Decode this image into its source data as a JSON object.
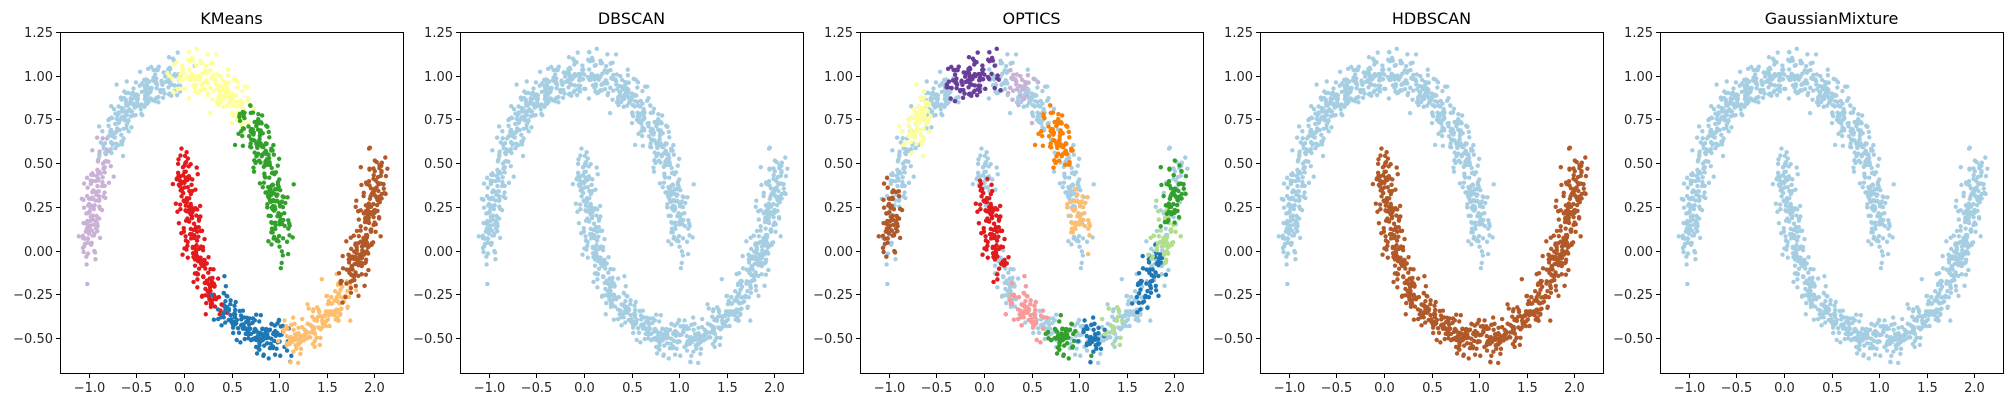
{
  "chart_data": [
    {
      "type": "scatter",
      "title": "KMeans",
      "xlabel": "",
      "ylabel": "",
      "xlim": [
        -1.3,
        2.3
      ],
      "ylim": [
        -0.7,
        1.25
      ],
      "xticks": [
        "−1.0",
        "−0.5",
        "0.0",
        "0.5",
        "1.0",
        "1.5",
        "2.0"
      ],
      "yticks": [
        "−0.50",
        "−0.25",
        "0.00",
        "0.25",
        "0.50",
        "0.75",
        "1.00",
        "1.25"
      ],
      "grid": false,
      "clusters": [
        {
          "color": "#cab2d6",
          "shape": "upper-moon",
          "t_range": [
            0.8,
            1.0
          ]
        },
        {
          "color": "#a6cee3",
          "shape": "upper-moon",
          "t_range": [
            0.52,
            0.8
          ]
        },
        {
          "color": "#ffff99",
          "shape": "upper-moon",
          "t_range": [
            0.28,
            0.52
          ]
        },
        {
          "color": "#33a02c",
          "shape": "upper-moon",
          "t_range": [
            0.0,
            0.28
          ]
        },
        {
          "color": "#e31a1c",
          "shape": "lower-moon",
          "t_range": [
            0.0,
            0.3
          ]
        },
        {
          "color": "#1f78b4",
          "shape": "lower-moon",
          "t_range": [
            0.3,
            0.52
          ]
        },
        {
          "color": "#fdbf6f",
          "shape": "lower-moon",
          "t_range": [
            0.52,
            0.75
          ]
        },
        {
          "color": "#b15928",
          "shape": "lower-moon",
          "t_range": [
            0.75,
            1.0
          ]
        }
      ]
    },
    {
      "type": "scatter",
      "title": "DBSCAN",
      "xlabel": "",
      "ylabel": "",
      "xlim": [
        -1.3,
        2.3
      ],
      "ylim": [
        -0.7,
        1.25
      ],
      "xticks": [
        "−1.0",
        "−0.5",
        "0.0",
        "0.5",
        "1.0",
        "1.5",
        "2.0"
      ],
      "yticks": [
        "−0.50",
        "−0.25",
        "0.00",
        "0.25",
        "0.50",
        "0.75",
        "1.00",
        "1.25"
      ],
      "grid": false,
      "clusters": [
        {
          "color": "#a6cee3",
          "shape": "upper-moon",
          "t_range": [
            0.0,
            1.0
          ]
        },
        {
          "color": "#a6cee3",
          "shape": "lower-moon",
          "t_range": [
            0.0,
            1.0
          ]
        }
      ]
    },
    {
      "type": "scatter",
      "title": "OPTICS",
      "xlabel": "",
      "ylabel": "",
      "xlim": [
        -1.3,
        2.3
      ],
      "ylim": [
        -0.7,
        1.25
      ],
      "xticks": [
        "−1.0",
        "−0.5",
        "0.0",
        "0.5",
        "1.0",
        "1.5",
        "2.0"
      ],
      "yticks": [
        "−0.50",
        "−0.25",
        "0.00",
        "0.25",
        "0.50",
        "0.75",
        "1.00",
        "1.25"
      ],
      "grid": false,
      "clusters": [
        {
          "color": "#a6cee3",
          "shape": "upper-moon",
          "t_range": [
            0.0,
            1.0
          ]
        },
        {
          "color": "#a6cee3",
          "shape": "lower-moon",
          "t_range": [
            0.0,
            1.0
          ]
        },
        {
          "color": "#b15928",
          "shape": "upper-moon",
          "t_range": [
            0.9,
            0.99
          ]
        },
        {
          "color": "#ffff99",
          "shape": "upper-moon",
          "t_range": [
            0.7,
            0.78
          ]
        },
        {
          "color": "#6a3d9a",
          "shape": "upper-moon",
          "t_range": [
            0.47,
            0.6
          ]
        },
        {
          "color": "#cab2d6",
          "shape": "upper-moon",
          "t_range": [
            0.36,
            0.42
          ]
        },
        {
          "color": "#ff7f00",
          "shape": "upper-moon",
          "t_range": [
            0.18,
            0.26
          ]
        },
        {
          "color": "#fdbf6f",
          "shape": "upper-moon",
          "t_range": [
            0.03,
            0.09
          ]
        },
        {
          "color": "#e31a1c",
          "shape": "lower-moon",
          "t_range": [
            0.05,
            0.2
          ]
        },
        {
          "color": "#fb9a99",
          "shape": "lower-moon",
          "t_range": [
            0.27,
            0.36
          ]
        },
        {
          "color": "#33a02c",
          "shape": "lower-moon",
          "t_range": [
            0.42,
            0.48
          ]
        },
        {
          "color": "#1f78b4",
          "shape": "lower-moon",
          "t_range": [
            0.52,
            0.56
          ]
        },
        {
          "color": "#b2df8a",
          "shape": "lower-moon",
          "t_range": [
            0.6,
            0.63
          ]
        },
        {
          "color": "#1f78b4",
          "shape": "lower-moon",
          "t_range": [
            0.72,
            0.8
          ]
        },
        {
          "color": "#b2df8a",
          "shape": "lower-moon",
          "t_range": [
            0.83,
            0.89
          ]
        },
        {
          "color": "#33a02c",
          "shape": "lower-moon",
          "t_range": [
            0.9,
            0.97
          ]
        }
      ]
    },
    {
      "type": "scatter",
      "title": "HDBSCAN",
      "xlabel": "",
      "ylabel": "",
      "xlim": [
        -1.3,
        2.3
      ],
      "ylim": [
        -0.7,
        1.25
      ],
      "xticks": [
        "−1.0",
        "−0.5",
        "0.0",
        "0.5",
        "1.0",
        "1.5",
        "2.0"
      ],
      "yticks": [
        "−0.50",
        "−0.25",
        "0.00",
        "0.25",
        "0.50",
        "0.75",
        "1.00",
        "1.25"
      ],
      "grid": false,
      "clusters": [
        {
          "color": "#a6cee3",
          "shape": "upper-moon",
          "t_range": [
            0.0,
            1.0
          ]
        },
        {
          "color": "#b15928",
          "shape": "lower-moon",
          "t_range": [
            0.0,
            1.0
          ]
        }
      ]
    },
    {
      "type": "scatter",
      "title": "GaussianMixture",
      "xlabel": "",
      "ylabel": "",
      "xlim": [
        -1.3,
        2.3
      ],
      "ylim": [
        -0.7,
        1.25
      ],
      "xticks": [
        "−1.0",
        "−0.5",
        "0.0",
        "0.5",
        "1.0",
        "1.5",
        "2.0"
      ],
      "yticks": [
        "−0.50",
        "−0.25",
        "0.00",
        "0.25",
        "0.50",
        "0.75",
        "1.00",
        "1.25"
      ],
      "grid": false,
      "clusters": [
        {
          "color": "#a6cee3",
          "shape": "upper-moon",
          "t_range": [
            0.0,
            1.0
          ]
        },
        {
          "color": "#a6cee3",
          "shape": "lower-moon",
          "t_range": [
            0.0,
            1.0
          ]
        }
      ]
    }
  ]
}
